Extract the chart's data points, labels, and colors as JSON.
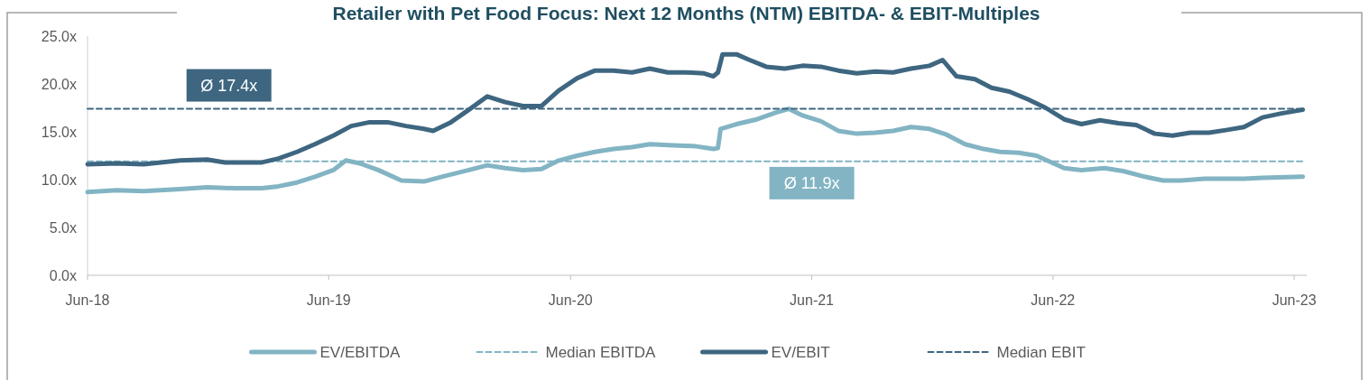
{
  "chart_data": {
    "type": "line",
    "title": "Retailer with Pet Food Focus: Next 12 Months (NTM) EBITDA- & EBIT-Multiples",
    "xlim": [
      "2018-06-01",
      "2023-06-20"
    ],
    "xticks": [
      {
        "value": "2018-06-01",
        "label": "Jun-18"
      },
      {
        "value": "2019-06-01",
        "label": "Jun-19"
      },
      {
        "value": "2020-06-01",
        "label": "Jun-20"
      },
      {
        "value": "2021-06-01",
        "label": "Jun-21"
      },
      {
        "value": "2022-06-01",
        "label": "Jun-22"
      },
      {
        "value": "2023-06-01",
        "label": "Jun-23"
      }
    ],
    "ylim": [
      0,
      25
    ],
    "yticks": [
      {
        "value": 0,
        "label": "0.0x"
      },
      {
        "value": 5,
        "label": "5.0x"
      },
      {
        "value": 10,
        "label": "10.0x"
      },
      {
        "value": 15,
        "label": "15.0x"
      },
      {
        "value": 20,
        "label": "20.0x"
      },
      {
        "value": 25,
        "label": "25.0x"
      }
    ],
    "grid": false,
    "legend": "bottom",
    "marker": "none",
    "series": [
      {
        "name": "EV/EBITDA",
        "color": "#82b4c4",
        "line_style": "solid",
        "x": [
          "2018-06-01",
          "2018-07-15",
          "2018-08-25",
          "2018-10-19",
          "2018-11-29",
          "2019-01-10",
          "2019-02-20",
          "2019-03-17",
          "2019-04-14",
          "2019-05-11",
          "2019-06-08",
          "2019-06-27",
          "2019-07-18",
          "2019-08-15",
          "2019-09-19",
          "2019-10-23",
          "2019-11-19",
          "2019-12-30",
          "2020-01-27",
          "2020-02-23",
          "2020-03-21",
          "2020-04-18",
          "2020-05-14",
          "2020-06-11",
          "2020-07-08",
          "2020-08-05",
          "2020-09-02",
          "2020-09-29",
          "2020-10-26",
          "2020-12-06",
          "2021-01-03",
          "2021-01-10",
          "2021-01-14",
          "2021-02-07",
          "2021-03-10",
          "2021-04-07",
          "2021-04-27",
          "2021-05-18",
          "2021-06-15",
          "2021-07-11",
          "2021-08-08",
          "2021-09-05",
          "2021-10-02",
          "2021-10-29",
          "2021-11-26",
          "2021-12-22",
          "2022-01-19",
          "2022-02-16",
          "2022-03-13",
          "2022-04-10",
          "2022-05-07",
          "2022-06-18",
          "2022-07-14",
          "2022-08-18",
          "2022-09-15",
          "2022-10-18",
          "2022-11-15",
          "2022-12-12",
          "2023-01-16",
          "2023-02-20",
          "2023-03-17",
          "2023-04-14",
          "2023-06-14"
        ],
        "values": [
          8.7,
          8.9,
          8.8,
          9.0,
          9.2,
          9.1,
          9.1,
          9.3,
          9.7,
          10.3,
          11.0,
          12.0,
          11.7,
          11.0,
          9.9,
          9.8,
          10.3,
          11.0,
          11.5,
          11.2,
          11.0,
          11.1,
          12.0,
          12.5,
          12.9,
          13.2,
          13.4,
          13.7,
          13.6,
          13.5,
          13.2,
          13.3,
          15.3,
          15.8,
          16.3,
          17.0,
          17.4,
          16.7,
          16.1,
          15.1,
          14.8,
          14.9,
          15.1,
          15.5,
          15.3,
          14.7,
          13.7,
          13.2,
          12.9,
          12.8,
          12.5,
          11.2,
          11.0,
          11.2,
          10.9,
          10.3,
          9.9,
          9.9,
          10.1,
          10.1,
          10.1,
          10.2,
          10.3
        ]
      },
      {
        "name": "Median EBITDA",
        "color": "#82b4c4",
        "line_style": "dashed",
        "x": [
          "2018-06-01",
          "2023-06-14"
        ],
        "values": [
          11.9,
          11.9
        ]
      },
      {
        "name": "EV/EBIT",
        "color": "#3e6680",
        "line_style": "solid",
        "x": [
          "2018-06-01",
          "2018-07-15",
          "2018-08-25",
          "2018-10-19",
          "2018-11-29",
          "2018-12-26",
          "2019-02-20",
          "2019-03-17",
          "2019-04-14",
          "2019-05-11",
          "2019-06-08",
          "2019-07-05",
          "2019-08-02",
          "2019-08-29",
          "2019-09-26",
          "2019-10-23",
          "2019-11-06",
          "2019-12-03",
          "2019-12-30",
          "2020-01-27",
          "2020-02-23",
          "2020-03-21",
          "2020-04-18",
          "2020-05-14",
          "2020-06-11",
          "2020-07-08",
          "2020-08-05",
          "2020-09-02",
          "2020-09-29",
          "2020-10-26",
          "2020-11-23",
          "2020-12-20",
          "2021-01-03",
          "2021-01-10",
          "2021-01-17",
          "2021-02-07",
          "2021-02-27",
          "2021-03-24",
          "2021-04-21",
          "2021-05-18",
          "2021-06-15",
          "2021-07-11",
          "2021-08-08",
          "2021-09-05",
          "2021-10-02",
          "2021-10-29",
          "2021-11-26",
          "2021-12-16",
          "2022-01-06",
          "2022-02-03",
          "2022-02-28",
          "2022-03-27",
          "2022-04-24",
          "2022-05-21",
          "2022-06-18",
          "2022-07-14",
          "2022-08-11",
          "2022-09-08",
          "2022-10-05",
          "2022-11-02",
          "2022-11-29",
          "2022-12-26",
          "2023-01-23",
          "2023-02-20",
          "2023-03-17",
          "2023-04-14",
          "2023-05-11",
          "2023-06-14"
        ],
        "values": [
          11.6,
          11.7,
          11.6,
          12.0,
          12.1,
          11.8,
          11.8,
          12.2,
          12.9,
          13.7,
          14.6,
          15.6,
          16.0,
          16.0,
          15.6,
          15.3,
          15.1,
          16.0,
          17.3,
          18.7,
          18.1,
          17.7,
          17.7,
          19.3,
          20.6,
          21.4,
          21.4,
          21.2,
          21.6,
          21.2,
          21.2,
          21.1,
          20.8,
          21.2,
          23.1,
          23.1,
          22.5,
          21.8,
          21.6,
          21.9,
          21.8,
          21.4,
          21.1,
          21.3,
          21.2,
          21.6,
          21.9,
          22.5,
          20.8,
          20.5,
          19.6,
          19.2,
          18.4,
          17.5,
          16.3,
          15.8,
          16.2,
          15.9,
          15.7,
          14.8,
          14.6,
          14.9,
          14.9,
          15.2,
          15.5,
          16.5,
          16.9,
          17.3
        ]
      },
      {
        "name": "Median EBIT",
        "color": "#3e6680",
        "line_style": "dashed",
        "x": [
          "2018-06-01",
          "2023-06-14"
        ],
        "values": [
          17.4,
          17.4
        ]
      }
    ],
    "annotations": [
      {
        "text": "Ø 17.4x",
        "x": "2019-01-01",
        "y": 17.4
      },
      {
        "text": "Ø 11.9x",
        "x": "2021-06-01",
        "y": 11.9
      }
    ]
  }
}
